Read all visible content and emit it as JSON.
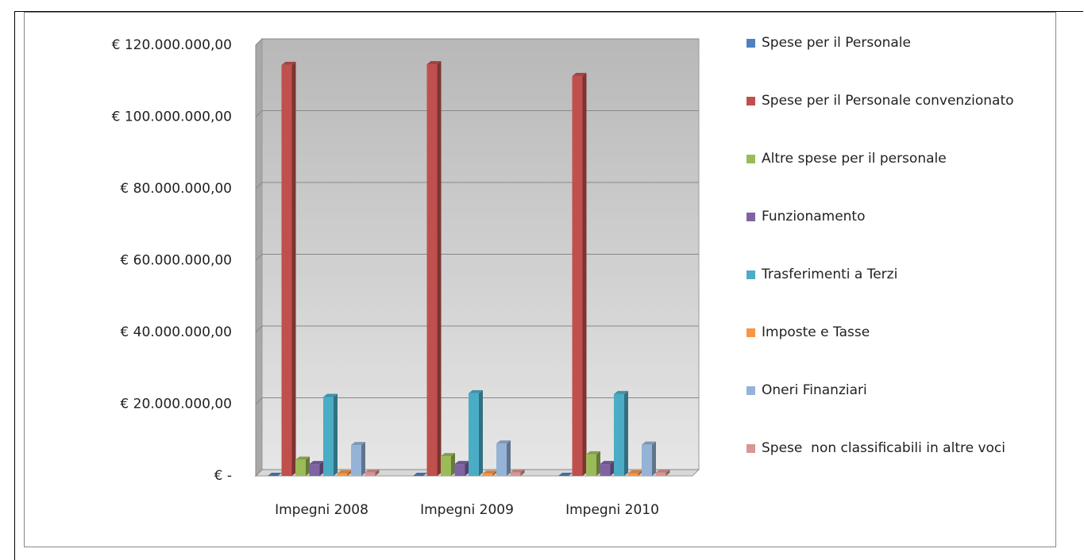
{
  "chart_data": {
    "type": "bar3d",
    "categories": [
      "Impegni 2008",
      "Impegni 2009",
      "Impegni 2010"
    ],
    "ylim": [
      0,
      120000000
    ],
    "yticks": [
      {
        "value": 0,
        "label": "€ -"
      },
      {
        "value": 20000000,
        "label": "€ 20.000.000,00"
      },
      {
        "value": 40000000,
        "label": "€ 40.000.000,00"
      },
      {
        "value": 60000000,
        "label": "€ 60.000.000,00"
      },
      {
        "value": 80000000,
        "label": "€ 80.000.000,00"
      },
      {
        "value": 100000000,
        "label": "€ 100.000.000,00"
      },
      {
        "value": 120000000,
        "label": "€ 120.000.000,00"
      }
    ],
    "grid": true,
    "legend": "right",
    "series": [
      {
        "name": "Spese per il Personale",
        "color": "#4f81bd",
        "values": [
          0,
          0,
          0
        ]
      },
      {
        "name": "Spese per il Personale convenzionato",
        "color": "#c0504d",
        "values": [
          114500000,
          114700000,
          111400000
        ]
      },
      {
        "name": "Altre spese per il personale",
        "color": "#9bbb59",
        "values": [
          4500000,
          5500000,
          6000000
        ]
      },
      {
        "name": "Funzionamento",
        "color": "#8064a2",
        "values": [
          3300000,
          3300000,
          3300000
        ]
      },
      {
        "name": "Trasferimenti a Terzi",
        "color": "#4bacc6",
        "values": [
          22000000,
          23000000,
          22800000
        ]
      },
      {
        "name": "Imposte e Tasse",
        "color": "#f79646",
        "values": [
          700000,
          600000,
          700000
        ]
      },
      {
        "name": "Oneri Finanziari",
        "color": "#95b3d7",
        "values": [
          8600000,
          9000000,
          8700000
        ]
      },
      {
        "name": "Spese  non classificabili in altre voci",
        "color": "#d99694",
        "values": [
          1000000,
          1000000,
          900000
        ]
      }
    ]
  }
}
